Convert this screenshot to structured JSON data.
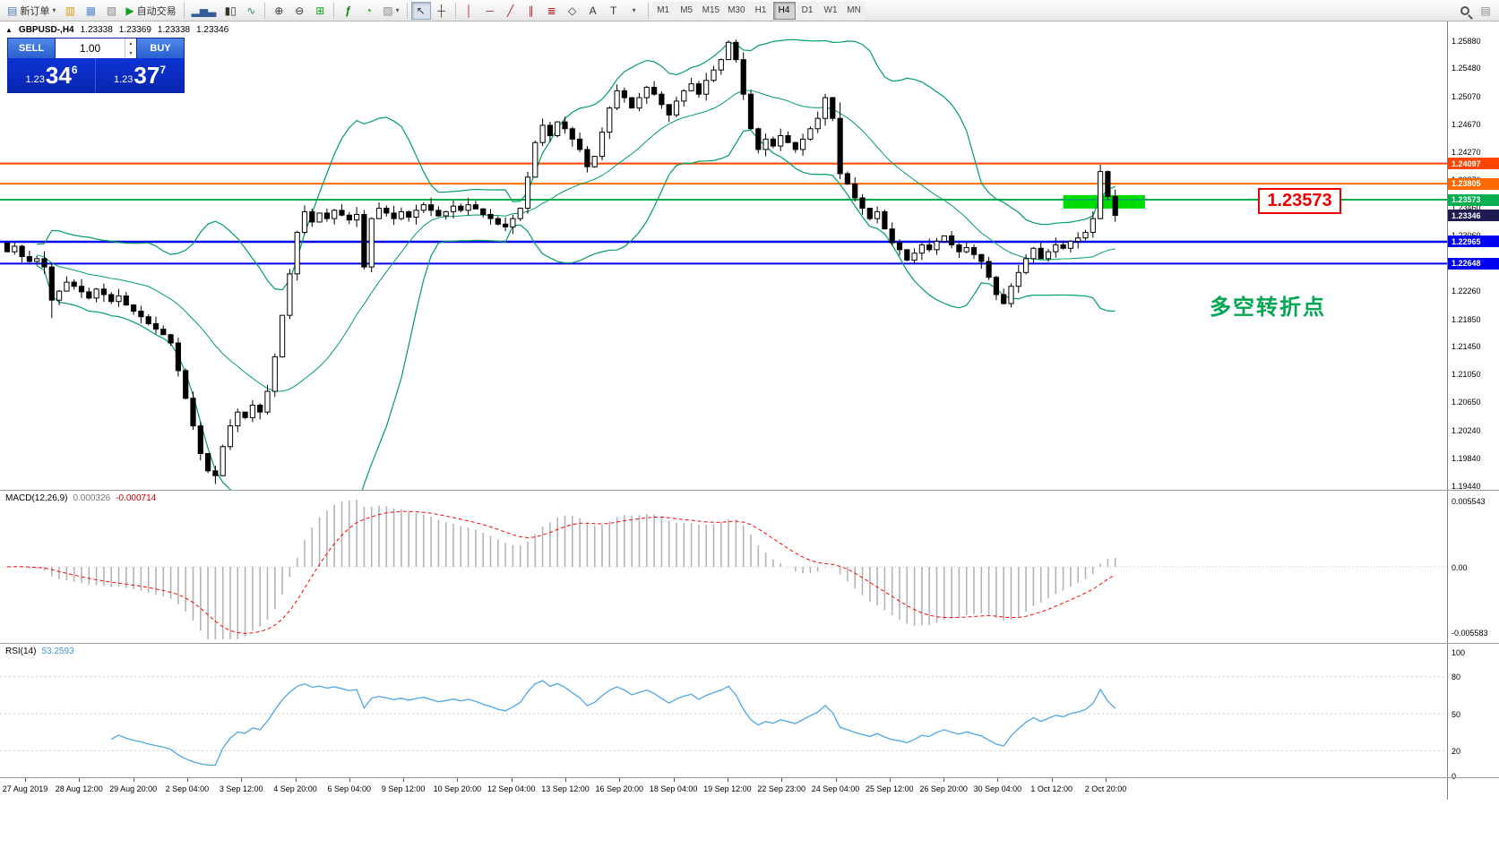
{
  "toolbar": {
    "new_order_label": "新订单",
    "auto_trading_label": "自动交易",
    "timeframes": [
      "M1",
      "M5",
      "M15",
      "M30",
      "H1",
      "H4",
      "D1",
      "W1",
      "MN"
    ],
    "active_timeframe": "H4",
    "icons": {
      "new_order": "▤",
      "market_watch": "▥",
      "data_window": "▦",
      "navigator": "▧",
      "auto_trading": "▶",
      "bar_chart": "▂▅▃",
      "candle_chart": "▮▯",
      "line_chart": "∿",
      "zoom_in": "⊕",
      "zoom_out": "⊖",
      "tile_windows": "⊞",
      "indicators": "ƒ",
      "periods": "◔",
      "templates": "▨",
      "cursor": "↖",
      "crosshair": "┼",
      "vline": "│",
      "hline": "─",
      "trendline": "╱",
      "channel": "∥",
      "fibonacci": "≣",
      "shapes": "◇",
      "text": "A",
      "label": "T",
      "caret": "▾",
      "chart_list": "▤",
      "collapse": "▲",
      "spin_up": "▴",
      "spin_down": "▾"
    }
  },
  "chart": {
    "symbol_header": {
      "symbol": "GBPUSD-,H4",
      "open": "1.23338",
      "high": "1.23369",
      "low": "1.23338",
      "close": "1.23346"
    },
    "trade_panel": {
      "sell_label": "SELL",
      "buy_label": "BUY",
      "volume": "1.00",
      "sell_prefix": "1.23",
      "sell_big": "34",
      "sell_sup": "6",
      "buy_prefix": "1.23",
      "buy_big": "37",
      "buy_sup": "7"
    },
    "price_scale": [
      "1.25880",
      "1.25480",
      "1.25070",
      "1.24670",
      "1.24270",
      "1.23870",
      "1.23460",
      "1.23060",
      "1.22660",
      "1.22260",
      "1.21850",
      "1.21450",
      "1.21050",
      "1.20650",
      "1.20240",
      "1.19840",
      "1.19440"
    ],
    "badges": [
      {
        "text": "1.24097",
        "price": 1.24097,
        "color": "#ff4500"
      },
      {
        "text": "1.23805",
        "price": 1.23805,
        "color": "#ff6a00"
      },
      {
        "text": "1.23573",
        "price": 1.23573,
        "color": "#00b050"
      },
      {
        "text": "1.23346",
        "price": 1.23346,
        "color": "#1c1c50"
      },
      {
        "text": "1.22965",
        "price": 1.22965,
        "color": "#0000f0"
      },
      {
        "text": "1.22648",
        "price": 1.22648,
        "color": "#0000f0"
      }
    ],
    "annotations": {
      "price_callout": "1.23573",
      "turning_point_label": "多空转折点"
    }
  },
  "macd": {
    "label": "MACD(12,26,9)",
    "value_main": "0.000326",
    "value_signal": "-0.000714",
    "scale": [
      {
        "text": "0.005543",
        "value": 0.005543
      },
      {
        "text": "0.00",
        "value": 0
      },
      {
        "text": "-0.005583",
        "value": -0.005583
      }
    ]
  },
  "rsi": {
    "label": "RSI(14)",
    "value": "53.2593",
    "scale": [
      {
        "text": "100",
        "value": 100
      },
      {
        "text": "80",
        "value": 80
      },
      {
        "text": "50",
        "value": 50
      },
      {
        "text": "20",
        "value": 20
      },
      {
        "text": "0",
        "value": 0
      }
    ]
  },
  "time_axis": [
    "27 Aug 2019",
    "28 Aug 12:00",
    "29 Aug 20:00",
    "2 Sep 04:00",
    "3 Sep 12:00",
    "4 Sep 20:00",
    "6 Sep 04:00",
    "9 Sep 12:00",
    "10 Sep 20:00",
    "12 Sep 04:00",
    "13 Sep 12:00",
    "16 Sep 20:00",
    "18 Sep 04:00",
    "19 Sep 12:00",
    "22 Sep 23:00",
    "24 Sep 04:00",
    "25 Sep 12:00",
    "26 Sep 20:00",
    "30 Sep 04:00",
    "1 Oct 12:00",
    "2 Oct 20:00"
  ],
  "chart_data": {
    "type": "candlestick",
    "symbol": "GBPUSD",
    "timeframe": "H4",
    "first_open": 1.2295,
    "closes": [
      1.2282,
      1.229,
      1.2275,
      1.2268,
      1.2272,
      1.226,
      1.2212,
      1.2225,
      1.2238,
      1.2232,
      1.2224,
      1.2215,
      1.2228,
      1.222,
      1.221,
      1.2218,
      1.2205,
      1.2196,
      1.2188,
      1.2178,
      1.217,
      1.2162,
      1.215,
      1.211,
      1.207,
      1.203,
      1.199,
      1.1965,
      1.1958,
      1.2,
      1.203,
      1.205,
      1.2042,
      1.206,
      1.205,
      1.208,
      1.213,
      1.219,
      1.225,
      1.231,
      1.234,
      1.2325,
      1.2338,
      1.233,
      1.2342,
      1.2335,
      1.2328,
      1.2336,
      1.226,
      1.233,
      1.2345,
      1.2338,
      1.233,
      1.234,
      1.2332,
      1.2342,
      1.235,
      1.2342,
      1.2334,
      1.234,
      1.2348,
      1.2342,
      1.235,
      1.2344,
      1.2336,
      1.233,
      1.2322,
      1.2318,
      1.233,
      1.2345,
      1.239,
      1.244,
      1.2465,
      1.245,
      1.247,
      1.246,
      1.2445,
      1.243,
      1.2405,
      1.242,
      1.2455,
      1.249,
      1.2515,
      1.2505,
      1.249,
      1.2505,
      1.252,
      1.251,
      1.2495,
      1.248,
      1.25,
      1.2515,
      1.2525,
      1.251,
      1.253,
      1.2545,
      1.256,
      1.2585,
      1.256,
      1.251,
      1.246,
      1.243,
      1.2445,
      1.2435,
      1.245,
      1.244,
      1.243,
      1.2445,
      1.246,
      1.2475,
      1.2505,
      1.2475,
      1.2395,
      1.238,
      1.236,
      1.2345,
      1.233,
      1.234,
      1.2315,
      1.2295,
      1.2285,
      1.227,
      1.228,
      1.2292,
      1.2285,
      1.2297,
      1.2305,
      1.2292,
      1.2282,
      1.2288,
      1.2278,
      1.2268,
      1.2245,
      1.222,
      1.2207,
      1.2232,
      1.2252,
      1.2272,
      1.2287,
      1.2272,
      1.2282,
      1.2292,
      1.2287,
      1.2297,
      1.2302,
      1.231,
      1.233,
      1.2398,
      1.2362,
      1.23346
    ],
    "wick_overrides": {
      "6": {
        "l": 1.2186
      },
      "28": {
        "l": 1.1946
      },
      "97": {
        "h": 1.2588
      },
      "112": {
        "h": 1.2498
      },
      "147": {
        "h": 1.2408
      },
      "149": {
        "h": 1.2372
      }
    },
    "indicators": {
      "bollinger": {
        "period": 20,
        "deviation": 2
      },
      "macd": {
        "fast": 12,
        "slow": 26,
        "signal": 9
      },
      "rsi": {
        "period": 14
      }
    },
    "levels": [
      {
        "price": 1.24097,
        "color": "#ff4500",
        "width": 2
      },
      {
        "price": 1.23805,
        "color": "#ff6a00",
        "width": 2
      },
      {
        "price": 1.23573,
        "color": "#00b050",
        "width": 2
      },
      {
        "price": 1.22965,
        "color": "#0000f0",
        "width": 2.5
      },
      {
        "price": 1.22648,
        "color": "#0000f0",
        "width": 2
      }
    ],
    "current_price": 1.23346,
    "y_axis": {
      "min": 1.1944,
      "max": 1.2588
    },
    "macd_axis": {
      "max": 0.005543,
      "min": -0.005583
    },
    "rsi_axis": {
      "max": 100,
      "min": 0,
      "levels": [
        80,
        50,
        20
      ]
    },
    "highlight_rect": {
      "i1": 142,
      "i2": 153,
      "p_top": 1.2364,
      "p_bottom": 1.23445,
      "color": "#00dc00"
    },
    "colors": {
      "up": "#ffffff",
      "down": "#000000",
      "outline": "#000000",
      "bollinger": "#009e60",
      "macd_histogram": "#b4b4b4",
      "macd_signal": "#ff0000",
      "rsi": "#4da6e8"
    }
  }
}
